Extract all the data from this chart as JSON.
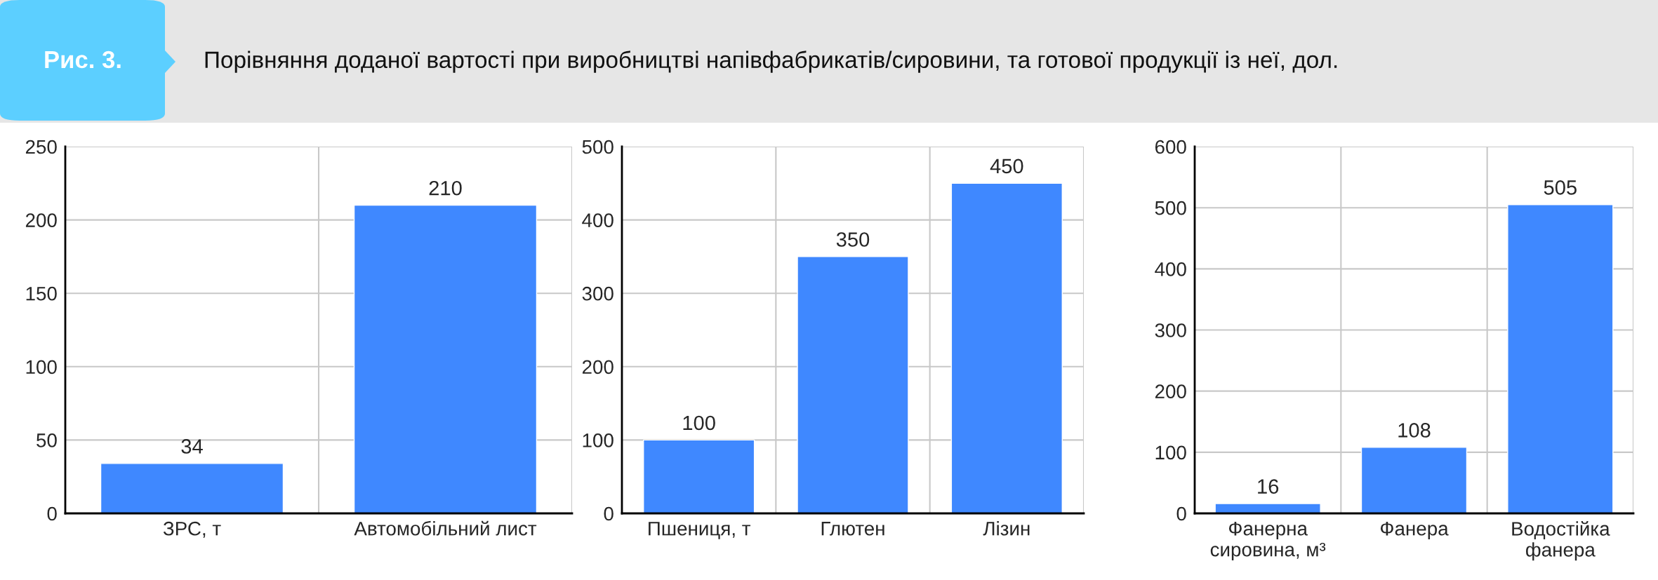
{
  "chart_data": [
    {
      "type": "bar",
      "title": "Порівняння доданої вартості при виробництві напівфабрикатів/сировини, та готової продукції із неї, дол.",
      "annotations": [
        "Рис. 3."
      ],
      "categories": [
        "ЗРС, т",
        "Автомобільний лист"
      ],
      "values": [
        34,
        210
      ],
      "color": "#3f88ff",
      "ylim": [
        0,
        250
      ],
      "yticks": [
        0,
        50,
        100,
        150,
        200,
        250
      ],
      "grid": true,
      "data_labels": true
    },
    {
      "type": "bar",
      "categories": [
        "Пшениця, т",
        "Глютен",
        "Лізин"
      ],
      "values": [
        100,
        350,
        450
      ],
      "color": "#3f88ff",
      "ylim": [
        0,
        500
      ],
      "yticks": [
        0,
        100,
        200,
        300,
        400,
        500
      ],
      "grid": true,
      "data_labels": true
    },
    {
      "type": "bar",
      "categories": [
        "Фанерна\nсировина, м³",
        "Фанера",
        "Водостійка\nфанера"
      ],
      "values": [
        16,
        108,
        505
      ],
      "color": "#3f88ff",
      "ylim": [
        0,
        600
      ],
      "yticks": [
        0,
        100,
        200,
        300,
        400,
        500,
        600
      ],
      "grid": true,
      "data_labels": true
    }
  ]
}
